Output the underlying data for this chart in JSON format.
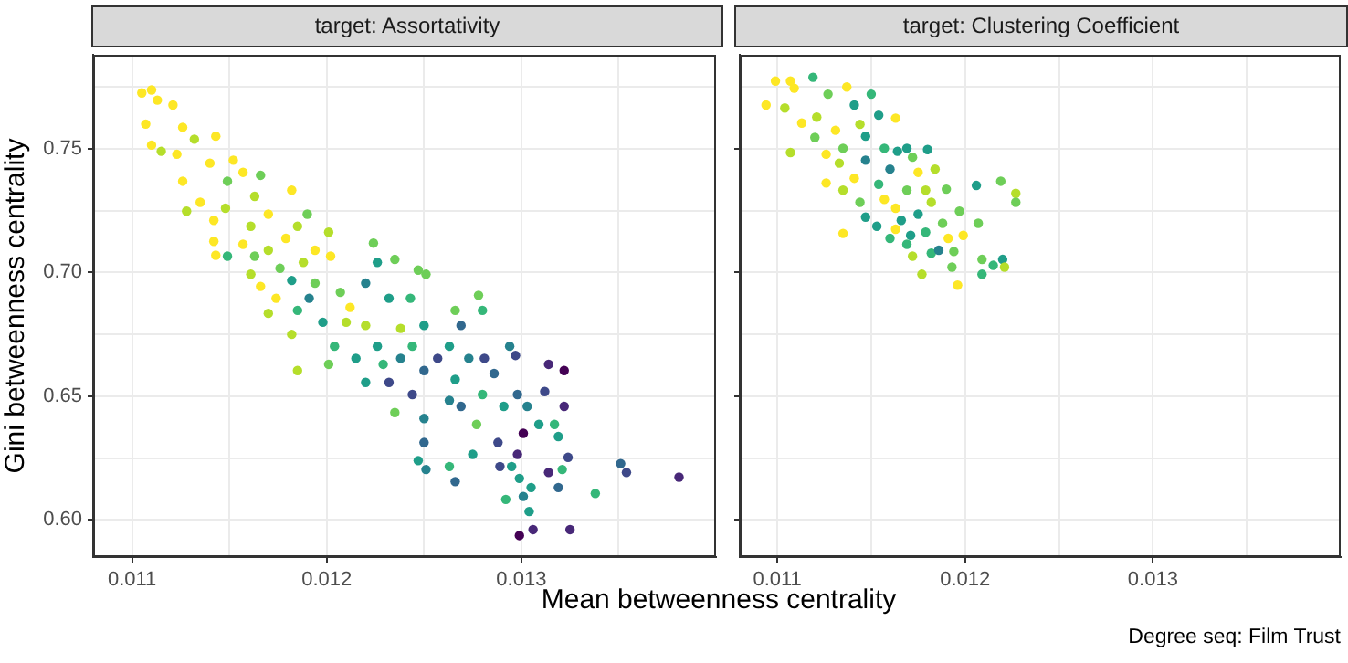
{
  "chart_data": [
    {
      "type": "scatter",
      "title": "target: Assortativity",
      "xlabel": "Mean betweenness centrality",
      "ylabel": "Gini betweenness centrality",
      "marker": "circle",
      "grid": true,
      "xlim": [
        0.0108,
        0.014
      ],
      "ylim": [
        0.585,
        0.788
      ],
      "xticks": [
        0.011,
        {
          "value": 0.0115,
          "label": null
        },
        0.012,
        {
          "value": 0.0125,
          "label": null
        },
        0.013,
        {
          "value": 0.0135,
          "label": null
        }
      ],
      "yticks": [
        {
          "value": 0.6,
          "label": "0.60"
        },
        {
          "value": 0.625,
          "label": null
        },
        0.65,
        {
          "value": 0.675,
          "label": null
        },
        {
          "value": 0.7,
          "label": "0.70"
        },
        {
          "value": 0.725,
          "label": null
        },
        0.75,
        {
          "value": 0.775,
          "label": null
        }
      ],
      "x": [
        0.01105,
        0.0111,
        0.01107,
        0.01113,
        0.01121,
        0.0111,
        0.01115,
        0.01126,
        0.01123,
        0.01132,
        0.01126,
        0.01143,
        0.0114,
        0.01135,
        0.01128,
        0.01149,
        0.01152,
        0.01142,
        0.01148,
        0.01142,
        0.01143,
        0.01149,
        0.01157,
        0.01163,
        0.01166,
        0.0117,
        0.01182,
        0.01161,
        0.01157,
        0.01163,
        0.0117,
        0.01161,
        0.01166,
        0.01176,
        0.01179,
        0.01185,
        0.0119,
        0.0117,
        0.01174,
        0.01182,
        0.01188,
        0.01194,
        0.01201,
        0.01202,
        0.01185,
        0.01191,
        0.01182,
        0.01185,
        0.01194,
        0.01198,
        0.01207,
        0.0121,
        0.01204,
        0.01201,
        0.01215,
        0.01212,
        0.0122,
        0.01224,
        0.01226,
        0.0122,
        0.01226,
        0.0122,
        0.01235,
        0.01232,
        0.01238,
        0.01229,
        0.01238,
        0.01232,
        0.01247,
        0.01243,
        0.0125,
        0.01244,
        0.0125,
        0.01244,
        0.01251,
        0.01235,
        0.0125,
        0.01257,
        0.01263,
        0.01266,
        0.01269,
        0.01266,
        0.01263,
        0.01269,
        0.0125,
        0.01247,
        0.01251,
        0.01263,
        0.01266,
        0.01275,
        0.01277,
        0.01278,
        0.0128,
        0.01273,
        0.01281,
        0.01286,
        0.0128,
        0.01288,
        0.01291,
        0.01294,
        0.01297,
        0.01289,
        0.01295,
        0.01292,
        0.01298,
        0.01298,
        0.01301,
        0.01303,
        0.01299,
        0.01301,
        0.01305,
        0.01299,
        0.01306,
        0.01304,
        0.01309,
        0.01314,
        0.01312,
        0.01314,
        0.01317,
        0.01319,
        0.01322,
        0.01322,
        0.01324,
        0.01321,
        0.01319,
        0.01325,
        0.01338,
        0.01351,
        0.01354,
        0.01381
      ],
      "values": [
        0.7726,
        0.7738,
        0.76,
        0.7697,
        0.7677,
        0.7515,
        0.749,
        0.7587,
        0.7478,
        0.7539,
        0.7369,
        0.7551,
        0.7442,
        0.7284,
        0.7248,
        0.7369,
        0.7454,
        0.7211,
        0.726,
        0.7126,
        0.707,
        0.7066,
        0.7405,
        0.7308,
        0.7393,
        0.7236,
        0.7333,
        0.7187,
        0.7114,
        0.7066,
        0.709,
        0.6993,
        0.6944,
        0.7017,
        0.7138,
        0.7187,
        0.7236,
        0.6835,
        0.6896,
        0.6968,
        0.7041,
        0.709,
        0.7163,
        0.7066,
        0.6847,
        0.6896,
        0.675,
        0.6604,
        0.6957,
        0.6799,
        0.692,
        0.6799,
        0.6702,
        0.6629,
        0.6653,
        0.6859,
        0.6957,
        0.7119,
        0.7041,
        0.6786,
        0.6702,
        0.6556,
        0.7053,
        0.6896,
        0.6774,
        0.6629,
        0.6653,
        0.6556,
        0.701,
        0.6896,
        0.6786,
        0.6702,
        0.6604,
        0.6507,
        0.6993,
        0.6434,
        0.641,
        0.6653,
        0.6702,
        0.6847,
        0.6786,
        0.6568,
        0.6483,
        0.6459,
        0.6313,
        0.624,
        0.6204,
        0.6216,
        0.6155,
        0.6265,
        0.6386,
        0.6908,
        0.6847,
        0.6653,
        0.6653,
        0.6592,
        0.6507,
        0.6313,
        0.6459,
        0.6702,
        0.6665,
        0.6216,
        0.6216,
        0.6083,
        0.6507,
        0.6265,
        0.635,
        0.6459,
        0.6168,
        0.6095,
        0.6131,
        0.5937,
        0.5961,
        0.6034,
        0.6386,
        0.6629,
        0.6519,
        0.6192,
        0.6386,
        0.6337,
        0.6604,
        0.6459,
        0.6253,
        0.6204,
        0.6131,
        0.5961,
        0.6107,
        0.6228,
        0.6192,
        0.6173
      ],
      "colors": [
        "#fde725",
        "#fde725",
        "#fde725",
        "#fde725",
        "#fde725",
        "#fde725",
        "#b5de2b",
        "#fde725",
        "#fde725",
        "#b5de2b",
        "#fde725",
        "#fde725",
        "#fde725",
        "#fde725",
        "#b5de2b",
        "#6ece58",
        "#fde725",
        "#fde725",
        "#b5de2b",
        "#fde725",
        "#fde725",
        "#35b779",
        "#fde725",
        "#b5de2b",
        "#6ece58",
        "#fde725",
        "#fde725",
        "#b5de2b",
        "#fde725",
        "#6ece58",
        "#b5de2b",
        "#b5de2b",
        "#fde725",
        "#6ece58",
        "#fde725",
        "#b5de2b",
        "#6ece58",
        "#b5de2b",
        "#fde725",
        "#1f9e89",
        "#b5de2b",
        "#fde725",
        "#b5de2b",
        "#fde725",
        "#35b779",
        "#26828e",
        "#b5de2b",
        "#b5de2b",
        "#6ece58",
        "#1f9e89",
        "#6ece58",
        "#b5de2b",
        "#35b779",
        "#6ece58",
        "#1f9e89",
        "#fde725",
        "#26828e",
        "#6ece58",
        "#1f9e89",
        "#b5de2b",
        "#1f9e89",
        "#1f9e89",
        "#6ece58",
        "#1f9e89",
        "#b5de2b",
        "#35b779",
        "#26828e",
        "#3e4989",
        "#6ece58",
        "#35b779",
        "#1f9e89",
        "#35b779",
        "#31688e",
        "#3e4989",
        "#6ece58",
        "#6ece58",
        "#26828e",
        "#3e4989",
        "#1f9e89",
        "#6ece58",
        "#31688e",
        "#1f9e89",
        "#26828e",
        "#31688e",
        "#31688e",
        "#1f9e89",
        "#26828e",
        "#35b779",
        "#31688e",
        "#1f9e89",
        "#6ece58",
        "#6ece58",
        "#35b779",
        "#26828e",
        "#3e4989",
        "#31688e",
        "#35b779",
        "#3e4989",
        "#1f9e89",
        "#26828e",
        "#3e4989",
        "#3e4989",
        "#1f9e89",
        "#35b779",
        "#31688e",
        "#482878",
        "#440154",
        "#26828e",
        "#1f9e89",
        "#26828e",
        "#1f9e89",
        "#440154",
        "#482878",
        "#1f9e89",
        "#1f9e89",
        "#482878",
        "#3e4989",
        "#482878",
        "#35b779",
        "#1f9e89",
        "#440154",
        "#482878",
        "#3e4989",
        "#35b779",
        "#31688e",
        "#482878",
        "#35b779",
        "#31688e",
        "#3e4989",
        "#482878"
      ]
    },
    {
      "type": "scatter",
      "title": "target: Clustering Coefficient",
      "marker": "circle",
      "grid": true,
      "tick_labels": "x",
      "annotations": [
        "Degree seq: Film Trust"
      ],
      "xlim": [
        0.0108,
        0.014
      ],
      "ylim": [
        0.585,
        0.788
      ],
      "xticks": [
        0.011,
        {
          "value": 0.0115,
          "label": null
        },
        0.012,
        {
          "value": 0.0125,
          "label": null
        },
        0.013,
        {
          "value": 0.0135,
          "label": null
        }
      ],
      "yticks": [
        {
          "value": 0.6,
          "label": null
        },
        {
          "value": 0.625,
          "label": null
        },
        {
          "value": 0.65,
          "label": null
        },
        {
          "value": 0.675,
          "label": null
        },
        {
          "value": 0.7,
          "label": null
        },
        {
          "value": 0.725,
          "label": null
        },
        {
          "value": 0.75,
          "label": null
        },
        {
          "value": 0.775,
          "label": null
        }
      ],
      "x": [
        0.01094,
        0.01099,
        0.01107,
        0.01109,
        0.01119,
        0.01104,
        0.01113,
        0.01107,
        0.01121,
        0.01127,
        0.01137,
        0.0112,
        0.01131,
        0.01126,
        0.01141,
        0.0115,
        0.01135,
        0.01144,
        0.01126,
        0.01133,
        0.01147,
        0.01154,
        0.01163,
        0.01135,
        0.01141,
        0.01147,
        0.01157,
        0.01164,
        0.01169,
        0.01144,
        0.01154,
        0.0116,
        0.01172,
        0.0118,
        0.01175,
        0.01184,
        0.01157,
        0.01147,
        0.01163,
        0.01169,
        0.01179,
        0.0119,
        0.01153,
        0.01135,
        0.01163,
        0.01166,
        0.01175,
        0.01182,
        0.01171,
        0.01179,
        0.01188,
        0.01191,
        0.01197,
        0.01207,
        0.01199,
        0.01206,
        0.01219,
        0.01227,
        0.01227,
        0.01172,
        0.01177,
        0.01182,
        0.01186,
        0.01194,
        0.01193,
        0.01196,
        0.01209,
        0.01209,
        0.01215,
        0.0122,
        0.01221,
        0.0116,
        0.01169
      ],
      "values": [
        0.7677,
        0.7774,
        0.7774,
        0.7745,
        0.7789,
        0.7665,
        0.7604,
        0.7485,
        0.7628,
        0.7721,
        0.775,
        0.7546,
        0.7575,
        0.7478,
        0.7677,
        0.7721,
        0.7502,
        0.7599,
        0.7362,
        0.7442,
        0.7551,
        0.7636,
        0.7624,
        0.7333,
        0.7381,
        0.7454,
        0.7502,
        0.749,
        0.7502,
        0.7284,
        0.7357,
        0.7418,
        0.7466,
        0.7497,
        0.7405,
        0.7418,
        0.7296,
        0.7224,
        0.726,
        0.7333,
        0.7333,
        0.7337,
        0.7187,
        0.7158,
        0.7175,
        0.7211,
        0.7236,
        0.7284,
        0.715,
        0.7163,
        0.7199,
        0.7138,
        0.7248,
        0.7199,
        0.715,
        0.7352,
        0.7369,
        0.732,
        0.7284,
        0.7066,
        0.6993,
        0.7078,
        0.709,
        0.7085,
        0.7022,
        0.6949,
        0.7053,
        0.6993,
        0.7029,
        0.7053,
        0.7022,
        0.7138,
        0.7114
      ],
      "colors": [
        "#fde725",
        "#fde725",
        "#fde725",
        "#fde725",
        "#35b779",
        "#b5de2b",
        "#fde725",
        "#b5de2b",
        "#b5de2b",
        "#6ece58",
        "#fde725",
        "#6ece58",
        "#fde725",
        "#fde725",
        "#1f9e89",
        "#35b779",
        "#6ece58",
        "#b5de2b",
        "#fde725",
        "#b5de2b",
        "#1f9e89",
        "#1f9e89",
        "#fde725",
        "#b5de2b",
        "#fde725",
        "#26828e",
        "#35b779",
        "#1f9e89",
        "#1f9e89",
        "#6ece58",
        "#35b779",
        "#26828e",
        "#6ece58",
        "#1f9e89",
        "#fde725",
        "#b5de2b",
        "#fde725",
        "#1f9e89",
        "#fde725",
        "#6ece58",
        "#b5de2b",
        "#6ece58",
        "#1f9e89",
        "#fde725",
        "#fde725",
        "#1f9e89",
        "#1f9e89",
        "#b5de2b",
        "#1f9e89",
        "#35b779",
        "#6ece58",
        "#fde725",
        "#6ece58",
        "#6ece58",
        "#fde725",
        "#1f9e89",
        "#6ece58",
        "#b5de2b",
        "#6ece58",
        "#b5de2b",
        "#b5de2b",
        "#35b779",
        "#26828e",
        "#6ece58",
        "#6ece58",
        "#fde725",
        "#6ece58",
        "#35b779",
        "#35b779",
        "#1f9e89",
        "#b5de2b",
        "#35b779",
        "#35b779"
      ]
    }
  ]
}
